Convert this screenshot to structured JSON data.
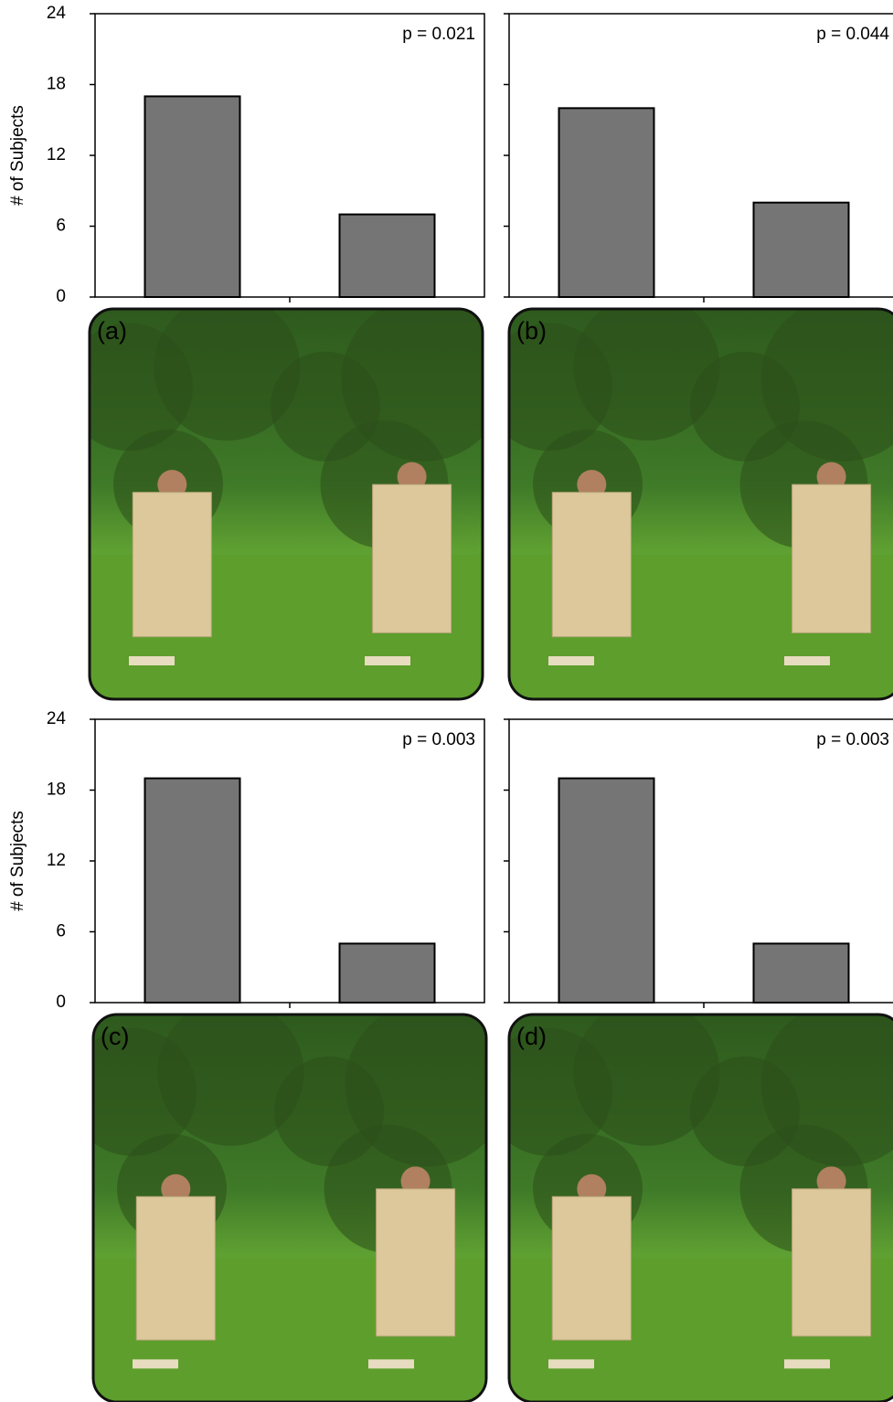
{
  "chart_data": [
    {
      "type": "bar",
      "panel_label": "(a)",
      "annotation": "p = 0.021",
      "ylabel": "# of Subjects",
      "tick_labels": true,
      "categories": [
        null,
        null
      ],
      "values": [
        17,
        7
      ],
      "color": "#757575",
      "ylim": [
        0,
        24
      ],
      "yticks": [
        0,
        6,
        12,
        18,
        24
      ]
    },
    {
      "type": "bar",
      "panel_label": "(b)",
      "annotation": "p = 0.044",
      "tick_labels": false,
      "categories": [
        null,
        null
      ],
      "values": [
        16,
        8
      ],
      "color": "#757575",
      "ylim": [
        0,
        24
      ],
      "yticks": [
        0,
        6,
        12,
        18,
        24
      ]
    },
    {
      "type": "bar",
      "panel_label": "(c)",
      "annotation": "p = 0.003",
      "ylabel": "# of Subjects",
      "tick_labels": true,
      "categories": [
        null,
        null
      ],
      "values": [
        19,
        5
      ],
      "color": "#757575",
      "ylim": [
        0,
        24
      ],
      "yticks": [
        0,
        6,
        12,
        18,
        24
      ]
    },
    {
      "type": "bar",
      "panel_label": "(d)",
      "annotation": "p = 0.003",
      "tick_labels": false,
      "categories": [
        null,
        null
      ],
      "values": [
        19,
        5
      ],
      "color": "#757575",
      "ylim": [
        0,
        24
      ],
      "yticks": [
        0,
        6,
        12,
        18,
        24
      ]
    }
  ]
}
